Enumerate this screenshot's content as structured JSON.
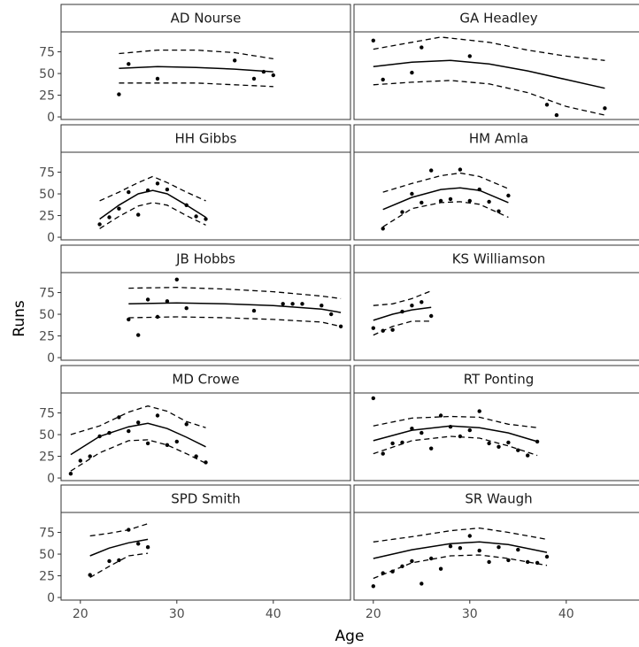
{
  "chart_data": {
    "type": "scatter",
    "xlabel": "Age",
    "ylabel": "Runs",
    "xlim": [
      18,
      48
    ],
    "ylim": [
      -3,
      98
    ],
    "x_ticks": [
      20,
      30,
      40
    ],
    "y_ticks": [
      0,
      25,
      50,
      75
    ],
    "grid": false,
    "layout": {
      "rows": 5,
      "cols": 2
    },
    "colors": {
      "points": "#000000",
      "fit": "#000000",
      "band": "#000000",
      "frame": "#333333",
      "strip": "#ffffff"
    },
    "panels": [
      {
        "name": "AD Nourse",
        "points": [
          [
            24,
            26
          ],
          [
            25,
            61
          ],
          [
            28,
            44
          ],
          [
            36,
            65
          ],
          [
            38,
            44
          ],
          [
            39,
            52
          ],
          [
            40,
            48
          ]
        ],
        "fit": [
          [
            24,
            56
          ],
          [
            28,
            58
          ],
          [
            32,
            57
          ],
          [
            36,
            55
          ],
          [
            40,
            52
          ]
        ],
        "upper": [
          [
            24,
            73
          ],
          [
            28,
            77
          ],
          [
            32,
            77
          ],
          [
            36,
            74
          ],
          [
            40,
            67
          ]
        ],
        "lower": [
          [
            24,
            39
          ],
          [
            28,
            39
          ],
          [
            32,
            39
          ],
          [
            36,
            37
          ],
          [
            40,
            35
          ]
        ]
      },
      {
        "name": "GA Headley",
        "points": [
          [
            20,
            88
          ],
          [
            21,
            43
          ],
          [
            24,
            51
          ],
          [
            25,
            80
          ],
          [
            30,
            70
          ],
          [
            38,
            14
          ],
          [
            39,
            2
          ],
          [
            44,
            10
          ]
        ],
        "fit": [
          [
            20,
            58
          ],
          [
            24,
            63
          ],
          [
            28,
            65
          ],
          [
            32,
            61
          ],
          [
            36,
            53
          ],
          [
            40,
            43
          ],
          [
            44,
            33
          ]
        ],
        "upper": [
          [
            20,
            78
          ],
          [
            24,
            86
          ],
          [
            27,
            92
          ],
          [
            32,
            86
          ],
          [
            36,
            77
          ],
          [
            40,
            70
          ],
          [
            44,
            65
          ]
        ],
        "lower": [
          [
            20,
            37
          ],
          [
            24,
            40
          ],
          [
            28,
            42
          ],
          [
            32,
            38
          ],
          [
            36,
            28
          ],
          [
            40,
            12
          ],
          [
            44,
            2
          ]
        ]
      },
      {
        "name": "HH Gibbs",
        "points": [
          [
            22,
            15
          ],
          [
            23,
            23
          ],
          [
            24,
            33
          ],
          [
            25,
            52
          ],
          [
            26,
            26
          ],
          [
            27,
            54
          ],
          [
            28,
            62
          ],
          [
            29,
            55
          ],
          [
            31,
            37
          ],
          [
            32,
            24
          ],
          [
            33,
            21
          ]
        ],
        "fit": [
          [
            22,
            21
          ],
          [
            24,
            37
          ],
          [
            26,
            50
          ],
          [
            27.5,
            54
          ],
          [
            29,
            50
          ],
          [
            31,
            37
          ],
          [
            33,
            23
          ]
        ],
        "upper": [
          [
            22,
            42
          ],
          [
            24,
            52
          ],
          [
            26,
            63
          ],
          [
            27.5,
            70
          ],
          [
            29,
            63
          ],
          [
            31,
            52
          ],
          [
            33,
            42
          ]
        ],
        "lower": [
          [
            22,
            10
          ],
          [
            24,
            24
          ],
          [
            26,
            36
          ],
          [
            27.5,
            40
          ],
          [
            29,
            37
          ],
          [
            31,
            25
          ],
          [
            33,
            14
          ]
        ]
      },
      {
        "name": "HM Amla",
        "points": [
          [
            21,
            10
          ],
          [
            23,
            29
          ],
          [
            24,
            50
          ],
          [
            25,
            40
          ],
          [
            26,
            77
          ],
          [
            27,
            42
          ],
          [
            28,
            44
          ],
          [
            29,
            78
          ],
          [
            30,
            42
          ],
          [
            31,
            55
          ],
          [
            32,
            41
          ],
          [
            33,
            30
          ],
          [
            34,
            48
          ]
        ],
        "fit": [
          [
            21,
            32
          ],
          [
            24,
            46
          ],
          [
            27,
            55
          ],
          [
            29,
            57
          ],
          [
            31,
            54
          ],
          [
            34,
            40
          ]
        ],
        "upper": [
          [
            21,
            52
          ],
          [
            24,
            62
          ],
          [
            27,
            71
          ],
          [
            29,
            74
          ],
          [
            31,
            70
          ],
          [
            34,
            56
          ]
        ],
        "lower": [
          [
            21,
            12
          ],
          [
            24,
            33
          ],
          [
            27,
            40
          ],
          [
            29,
            41
          ],
          [
            31,
            38
          ],
          [
            34,
            23
          ]
        ]
      },
      {
        "name": "JB Hobbs",
        "points": [
          [
            25,
            44
          ],
          [
            26,
            26
          ],
          [
            27,
            67
          ],
          [
            28,
            47
          ],
          [
            29,
            65
          ],
          [
            30,
            90
          ],
          [
            31,
            57
          ],
          [
            38,
            54
          ],
          [
            41,
            62
          ],
          [
            42,
            62
          ],
          [
            43,
            62
          ],
          [
            45,
            60
          ],
          [
            46,
            50
          ],
          [
            47,
            36
          ]
        ],
        "fit": [
          [
            25,
            62
          ],
          [
            30,
            63
          ],
          [
            35,
            62
          ],
          [
            40,
            60
          ],
          [
            45,
            56
          ],
          [
            47,
            52
          ]
        ],
        "upper": [
          [
            25,
            80
          ],
          [
            30,
            81
          ],
          [
            35,
            79
          ],
          [
            40,
            76
          ],
          [
            45,
            71
          ],
          [
            47,
            68
          ]
        ],
        "lower": [
          [
            25,
            46
          ],
          [
            30,
            47
          ],
          [
            35,
            46
          ],
          [
            40,
            44
          ],
          [
            45,
            41
          ],
          [
            47,
            36
          ]
        ]
      },
      {
        "name": "KS Williamson",
        "points": [
          [
            20,
            34
          ],
          [
            21,
            31
          ],
          [
            22,
            32
          ],
          [
            23,
            53
          ],
          [
            24,
            60
          ],
          [
            25,
            64
          ],
          [
            26,
            48
          ]
        ],
        "fit": [
          [
            20,
            43
          ],
          [
            22,
            50
          ],
          [
            24,
            55
          ],
          [
            26,
            58
          ]
        ],
        "upper": [
          [
            20,
            60
          ],
          [
            22,
            62
          ],
          [
            24,
            68
          ],
          [
            26,
            77
          ]
        ],
        "lower": [
          [
            20,
            26
          ],
          [
            22,
            36
          ],
          [
            24,
            42
          ],
          [
            26,
            42
          ]
        ]
      },
      {
        "name": "MD Crowe",
        "points": [
          [
            19,
            5
          ],
          [
            20,
            20
          ],
          [
            21,
            25
          ],
          [
            22,
            48
          ],
          [
            23,
            52
          ],
          [
            24,
            70
          ],
          [
            25,
            54
          ],
          [
            26,
            64
          ],
          [
            27,
            40
          ],
          [
            28,
            72
          ],
          [
            29,
            38
          ],
          [
            30,
            42
          ],
          [
            31,
            62
          ],
          [
            32,
            25
          ],
          [
            33,
            18
          ]
        ],
        "fit": [
          [
            19,
            27
          ],
          [
            22,
            48
          ],
          [
            25,
            59
          ],
          [
            27,
            63
          ],
          [
            29,
            57
          ],
          [
            31,
            47
          ],
          [
            33,
            36
          ]
        ],
        "upper": [
          [
            19,
            50
          ],
          [
            22,
            60
          ],
          [
            25,
            76
          ],
          [
            27,
            83
          ],
          [
            29,
            77
          ],
          [
            31,
            65
          ],
          [
            33,
            58
          ]
        ],
        "lower": [
          [
            19,
            8
          ],
          [
            22,
            29
          ],
          [
            25,
            43
          ],
          [
            27,
            44
          ],
          [
            29,
            38
          ],
          [
            31,
            28
          ],
          [
            33,
            17
          ]
        ]
      },
      {
        "name": "RT Ponting",
        "points": [
          [
            20,
            92
          ],
          [
            21,
            28
          ],
          [
            22,
            40
          ],
          [
            23,
            41
          ],
          [
            24,
            57
          ],
          [
            25,
            52
          ],
          [
            26,
            34
          ],
          [
            27,
            72
          ],
          [
            28,
            59
          ],
          [
            29,
            48
          ],
          [
            30,
            55
          ],
          [
            31,
            77
          ],
          [
            32,
            40
          ],
          [
            33,
            36
          ],
          [
            34,
            41
          ],
          [
            35,
            32
          ],
          [
            36,
            26
          ],
          [
            37,
            42
          ]
        ],
        "fit": [
          [
            20,
            43
          ],
          [
            24,
            55
          ],
          [
            28,
            60
          ],
          [
            31,
            58
          ],
          [
            34,
            52
          ],
          [
            37,
            42
          ]
        ],
        "upper": [
          [
            20,
            60
          ],
          [
            24,
            69
          ],
          [
            28,
            71
          ],
          [
            31,
            70
          ],
          [
            34,
            62
          ],
          [
            37,
            58
          ]
        ],
        "lower": [
          [
            20,
            28
          ],
          [
            24,
            43
          ],
          [
            28,
            48
          ],
          [
            31,
            46
          ],
          [
            34,
            37
          ],
          [
            37,
            26
          ]
        ]
      },
      {
        "name": "SPD Smith",
        "points": [
          [
            21,
            26
          ],
          [
            23,
            42
          ],
          [
            24,
            43
          ],
          [
            25,
            78
          ],
          [
            26,
            62
          ],
          [
            27,
            58
          ]
        ],
        "fit": [
          [
            21,
            48
          ],
          [
            23,
            57
          ],
          [
            25,
            63
          ],
          [
            27,
            67
          ]
        ],
        "upper": [
          [
            21,
            71
          ],
          [
            23,
            74
          ],
          [
            25,
            78
          ],
          [
            27,
            85
          ]
        ],
        "lower": [
          [
            21,
            23
          ],
          [
            23,
            36
          ],
          [
            25,
            48
          ],
          [
            27,
            51
          ]
        ]
      },
      {
        "name": "SR Waugh",
        "points": [
          [
            20,
            13
          ],
          [
            21,
            28
          ],
          [
            22,
            30
          ],
          [
            23,
            36
          ],
          [
            24,
            42
          ],
          [
            25,
            16
          ],
          [
            26,
            45
          ],
          [
            27,
            33
          ],
          [
            28,
            59
          ],
          [
            29,
            57
          ],
          [
            30,
            71
          ],
          [
            31,
            54
          ],
          [
            32,
            41
          ],
          [
            33,
            58
          ],
          [
            34,
            43
          ],
          [
            35,
            55
          ],
          [
            36,
            41
          ],
          [
            37,
            40
          ],
          [
            38,
            47
          ]
        ],
        "fit": [
          [
            20,
            45
          ],
          [
            24,
            55
          ],
          [
            28,
            62
          ],
          [
            31,
            64
          ],
          [
            34,
            61
          ],
          [
            38,
            52
          ]
        ],
        "upper": [
          [
            20,
            64
          ],
          [
            24,
            70
          ],
          [
            28,
            77
          ],
          [
            31,
            80
          ],
          [
            34,
            75
          ],
          [
            38,
            67
          ]
        ],
        "lower": [
          [
            20,
            22
          ],
          [
            24,
            40
          ],
          [
            28,
            48
          ],
          [
            31,
            49
          ],
          [
            34,
            45
          ],
          [
            38,
            37
          ]
        ]
      }
    ]
  }
}
